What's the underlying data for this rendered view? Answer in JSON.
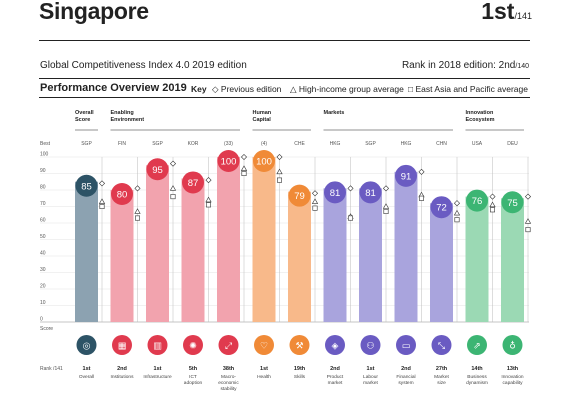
{
  "header": {
    "country": "Singapore",
    "rank": "1st",
    "rank_total": "/141",
    "edition": "Global Competitiveness Index 4.0 2019 edition",
    "prev_rank_label": "Rank in 2018 edition: 2nd",
    "prev_rank_total": "/140"
  },
  "overview": {
    "title": "Performance Overview 2019",
    "key_label": "Key",
    "legend": [
      {
        "symbol": "◇",
        "label": "Previous edition"
      },
      {
        "symbol": "△",
        "label": "High-income group average"
      },
      {
        "symbol": "□",
        "label": "East Asia and Pacific average"
      }
    ]
  },
  "chart_data": {
    "type": "bar",
    "ylim": [
      0,
      100
    ],
    "yticks": [
      0,
      10,
      20,
      30,
      40,
      50,
      60,
      70,
      80,
      90,
      100
    ],
    "y_top_label": "Best",
    "y_bottom_label": "Score",
    "rank_axis_label": "Rank /141",
    "groups": [
      {
        "label": [
          "Overall",
          "Score"
        ],
        "start": 0,
        "end": 0
      },
      {
        "label": [
          "Enabling",
          "Environment"
        ],
        "start": 1,
        "end": 4
      },
      {
        "label": [
          "Human",
          "Capital"
        ],
        "start": 5,
        "end": 6
      },
      {
        "label": [
          "Markets"
        ],
        "start": 7,
        "end": 10
      },
      {
        "label": [
          "Innovation",
          "Ecosystem"
        ],
        "start": 11,
        "end": 12
      }
    ],
    "colors": {
      "overall": {
        "bar": "#8ca2b1",
        "circle": "#2d5366"
      },
      "enabling": {
        "bar": "#f2a3ae",
        "circle": "#e03a4e"
      },
      "human": {
        "bar": "#f8b98a",
        "circle": "#f08a37"
      },
      "markets": {
        "bar": "#a9a4dd",
        "circle": "#6a5bc2"
      },
      "innovation": {
        "bar": "#9bd9b4",
        "circle": "#3cb573"
      }
    },
    "pillars": [
      {
        "name": [
          "Overall"
        ],
        "value": 85,
        "rank": "1st",
        "best": "SGP",
        "group": "overall",
        "prev": 84,
        "high": 73,
        "east": 70,
        "icon": "target-icon",
        "glyph": "◎"
      },
      {
        "name": [
          "Institutions"
        ],
        "value": 80,
        "rank": "2nd",
        "best": "FIN",
        "group": "enabling",
        "prev": 81,
        "high": 67,
        "east": 63,
        "icon": "institutions-icon",
        "glyph": "▦"
      },
      {
        "name": [
          "Infrastructure"
        ],
        "value": 95,
        "rank": "1st",
        "best": "SGP",
        "group": "enabling",
        "prev": 96,
        "high": 81,
        "east": 76,
        "icon": "infrastructure-icon",
        "glyph": "▥"
      },
      {
        "name": [
          "ICT",
          "adoption"
        ],
        "value": 87,
        "rank": "5th",
        "best": "KOR",
        "group": "enabling",
        "prev": 86,
        "high": 74,
        "east": 71,
        "icon": "ict-icon",
        "glyph": "✺"
      },
      {
        "name": [
          "Macro-",
          "economic",
          "stability"
        ],
        "value": 100,
        "rank": "38th",
        "best": "(33)",
        "group": "enabling",
        "prev": 100,
        "high": 93,
        "east": 90,
        "icon": "macro-icon",
        "glyph": "⤢"
      },
      {
        "name": [
          "Health"
        ],
        "value": 100,
        "rank": "1st",
        "best": "(4)",
        "group": "human",
        "prev": 100,
        "high": 91,
        "east": 86,
        "icon": "health-icon",
        "glyph": "♡"
      },
      {
        "name": [
          "Skills"
        ],
        "value": 79,
        "rank": "19th",
        "best": "CHE",
        "group": "human",
        "prev": 78,
        "high": 73,
        "east": 69,
        "icon": "skills-icon",
        "glyph": "⚒"
      },
      {
        "name": [
          "Product",
          "market"
        ],
        "value": 81,
        "rank": "2nd",
        "best": "HKG",
        "group": "markets",
        "prev": 81,
        "high": 64,
        "east": 63,
        "icon": "product-market-icon",
        "glyph": "◈"
      },
      {
        "name": [
          "Labour",
          "market"
        ],
        "value": 81,
        "rank": "1st",
        "best": "SGP",
        "group": "markets",
        "prev": 81,
        "high": 70,
        "east": 67,
        "icon": "labour-market-icon",
        "glyph": "⚇"
      },
      {
        "name": [
          "Financial",
          "system"
        ],
        "value": 91,
        "rank": "2nd",
        "best": "HKG",
        "group": "markets",
        "prev": 91,
        "high": 77,
        "east": 75,
        "icon": "financial-system-icon",
        "glyph": "▭"
      },
      {
        "name": [
          "Market",
          "size"
        ],
        "value": 72,
        "rank": "27th",
        "best": "CHN",
        "group": "markets",
        "prev": 72,
        "high": 66,
        "east": 62,
        "icon": "market-size-icon",
        "glyph": "⤡"
      },
      {
        "name": [
          "Business",
          "dynamism"
        ],
        "value": 76,
        "rank": "14th",
        "best": "USA",
        "group": "innovation",
        "prev": 76,
        "high": 71,
        "east": 68,
        "icon": "business-dynamism-icon",
        "glyph": "⇗"
      },
      {
        "name": [
          "Innovation",
          "capability"
        ],
        "value": 75,
        "rank": "13th",
        "best": "DEU",
        "group": "innovation",
        "prev": 76,
        "high": 61,
        "east": 56,
        "icon": "innovation-capability-icon",
        "glyph": "♁"
      }
    ]
  }
}
